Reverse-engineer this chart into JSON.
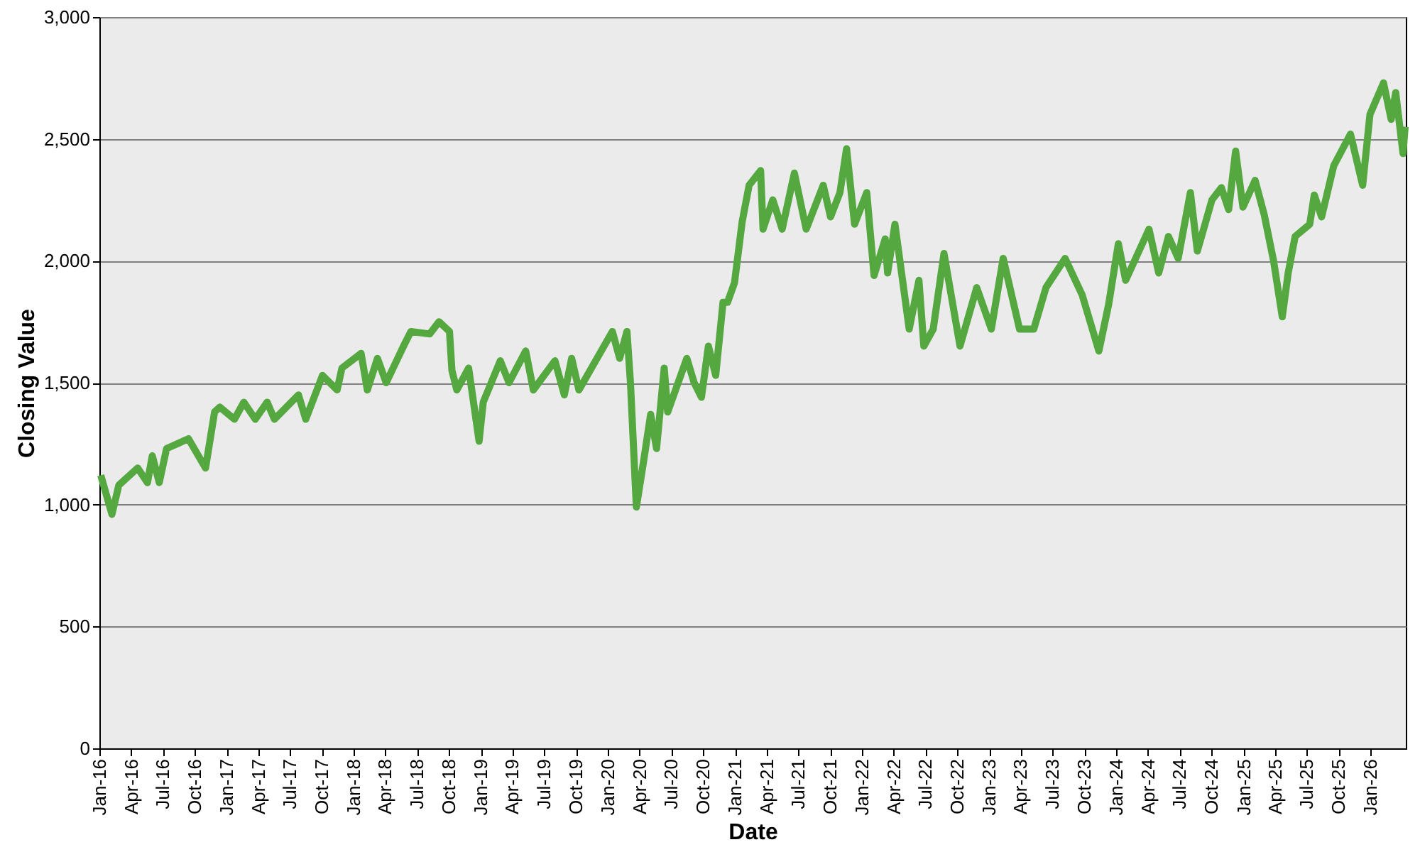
{
  "chart_data": {
    "type": "line",
    "xlabel": "Date",
    "ylabel": "Closing Value",
    "x": [
      "2016-01-05",
      "2016-02-06",
      "2016-02-26",
      "2016-04-20",
      "2016-05-18",
      "2016-06-01",
      "2016-06-21",
      "2016-07-12",
      "2016-09-13",
      "2016-11-01",
      "2016-11-27",
      "2016-12-12",
      "2017-01-23",
      "2017-02-19",
      "2017-03-24",
      "2017-04-27",
      "2017-05-18",
      "2017-07-26",
      "2017-08-16",
      "2017-10-03",
      "2017-11-14",
      "2017-11-28",
      "2018-01-22",
      "2018-02-09",
      "2018-03-10",
      "2018-04-04",
      "2018-05-24",
      "2018-06-14",
      "2018-08-07",
      "2018-09-03",
      "2018-10-03",
      "2018-10-10",
      "2018-10-24",
      "2018-11-27",
      "2018-12-27",
      "2019-01-08",
      "2019-02-26",
      "2019-03-23",
      "2019-05-10",
      "2019-06-01",
      "2019-08-02",
      "2019-08-29",
      "2019-09-19",
      "2019-10-10",
      "2020-01-14",
      "2020-02-04",
      "2020-02-25",
      "2020-03-06",
      "2020-03-23",
      "2020-04-13",
      "2020-05-03",
      "2020-05-20",
      "2020-06-11",
      "2020-06-21",
      "2020-08-15",
      "2020-09-05",
      "2020-09-26",
      "2020-10-16",
      "2020-11-06",
      "2020-11-27",
      "2020-12-10",
      "2020-12-30",
      "2021-01-21",
      "2021-02-10",
      "2021-03-15",
      "2021-03-22",
      "2021-04-19",
      "2021-05-16",
      "2021-06-20",
      "2021-07-24",
      "2021-09-11",
      "2021-10-02",
      "2021-10-29",
      "2021-11-17",
      "2021-12-10",
      "2022-01-14",
      "2022-02-04",
      "2022-03-08",
      "2022-03-15",
      "2022-04-05",
      "2022-05-16",
      "2022-06-13",
      "2022-06-27",
      "2022-07-24",
      "2022-08-24",
      "2022-10-09",
      "2022-11-26",
      "2023-01-07",
      "2023-02-10",
      "2023-03-29",
      "2023-05-09",
      "2023-06-13",
      "2023-08-07",
      "2023-09-25",
      "2023-11-12",
      "2023-12-10",
      "2024-01-07",
      "2024-01-28",
      "2024-04-04",
      "2024-05-02",
      "2024-05-30",
      "2024-06-27",
      "2024-08-01",
      "2024-08-21",
      "2024-10-02",
      "2024-10-29",
      "2024-11-19",
      "2024-12-09",
      "2024-12-30",
      "2025-02-03",
      "2025-03-01",
      "2025-03-28",
      "2025-04-22",
      "2025-05-09",
      "2025-05-29",
      "2025-07-10",
      "2025-07-23",
      "2025-08-13",
      "2025-09-17",
      "2025-11-04",
      "2025-12-09",
      "2025-12-30",
      "2026-02-07",
      "2026-03-01",
      "2026-03-14",
      "2026-04-04",
      "2026-04-10"
    ],
    "series": [
      {
        "color": "#55a83f",
        "values": [
          1120,
          960,
          1080,
          1150,
          1090,
          1200,
          1090,
          1230,
          1270,
          1150,
          1380,
          1400,
          1350,
          1420,
          1350,
          1420,
          1350,
          1450,
          1350,
          1530,
          1470,
          1560,
          1620,
          1470,
          1600,
          1500,
          1650,
          1710,
          1700,
          1750,
          1710,
          1550,
          1470,
          1560,
          1260,
          1420,
          1590,
          1500,
          1630,
          1470,
          1590,
          1450,
          1600,
          1470,
          1710,
          1600,
          1710,
          1500,
          990,
          1180,
          1370,
          1230,
          1560,
          1380,
          1600,
          1500,
          1440,
          1650,
          1530,
          1830,
          1830,
          1910,
          2160,
          2310,
          2370,
          2130,
          2250,
          2130,
          2360,
          2130,
          2310,
          2180,
          2280,
          2460,
          2150,
          2280,
          1940,
          2090,
          1950,
          2150,
          1720,
          1920,
          1650,
          1720,
          2030,
          1650,
          1890,
          1720,
          2010,
          1720,
          1720,
          1890,
          2010,
          1860,
          1630,
          1820,
          2070,
          1920,
          2130,
          1950,
          2100,
          2010,
          2280,
          2040,
          2250,
          2300,
          2210,
          2450,
          2220,
          2330,
          2190,
          2000,
          1770,
          1950,
          2100,
          2150,
          2270,
          2180,
          2390,
          2520,
          2310,
          2600,
          2730,
          2580,
          2690,
          2440,
          2550
        ]
      }
    ],
    "xlim": [
      "2016-01-01",
      "2026-04-12"
    ],
    "ylim": [
      0,
      3000
    ],
    "yticks": [
      0,
      500,
      {
        "value": 1000,
        "label": "1,000"
      },
      {
        "value": 1500,
        "label": "1,500"
      },
      {
        "value": 2000,
        "label": "2,000"
      },
      {
        "value": 2500,
        "label": "2,500"
      },
      {
        "value": 3000,
        "label": "3,000"
      }
    ],
    "xticks": [
      {
        "value": "2016-01-01",
        "label": "Jan-16"
      },
      {
        "value": "2016-04-01",
        "label": "Apr-16"
      },
      {
        "value": "2016-07-01",
        "label": "Jul-16"
      },
      {
        "value": "2016-10-01",
        "label": "Oct-16"
      },
      {
        "value": "2017-01-01",
        "label": "Jan-17"
      },
      {
        "value": "2017-04-01",
        "label": "Apr-17"
      },
      {
        "value": "2017-07-01",
        "label": "Jul-17"
      },
      {
        "value": "2017-10-01",
        "label": "Oct-17"
      },
      {
        "value": "2018-01-01",
        "label": "Jan-18"
      },
      {
        "value": "2018-04-01",
        "label": "Apr-18"
      },
      {
        "value": "2018-07-01",
        "label": "Jul-18"
      },
      {
        "value": "2018-10-01",
        "label": "Oct-18"
      },
      {
        "value": "2019-01-01",
        "label": "Jan-19"
      },
      {
        "value": "2019-04-01",
        "label": "Apr-19"
      },
      {
        "value": "2019-07-01",
        "label": "Jul-19"
      },
      {
        "value": "2019-10-01",
        "label": "Oct-19"
      },
      {
        "value": "2020-01-01",
        "label": "Jan-20"
      },
      {
        "value": "2020-04-01",
        "label": "Apr-20"
      },
      {
        "value": "2020-07-01",
        "label": "Jul-20"
      },
      {
        "value": "2020-10-01",
        "label": "Oct-20"
      },
      {
        "value": "2021-01-01",
        "label": "Jan-21"
      },
      {
        "value": "2021-04-01",
        "label": "Apr-21"
      },
      {
        "value": "2021-07-01",
        "label": "Jul-21"
      },
      {
        "value": "2021-10-01",
        "label": "Oct-21"
      },
      {
        "value": "2022-01-01",
        "label": "Jan-22"
      },
      {
        "value": "2022-04-01",
        "label": "Apr-22"
      },
      {
        "value": "2022-07-01",
        "label": "Jul-22"
      },
      {
        "value": "2022-10-01",
        "label": "Oct-22"
      },
      {
        "value": "2023-01-01",
        "label": "Jan-23"
      },
      {
        "value": "2023-04-01",
        "label": "Apr-23"
      },
      {
        "value": "2023-07-01",
        "label": "Jul-23"
      },
      {
        "value": "2023-10-01",
        "label": "Oct-23"
      },
      {
        "value": "2024-01-01",
        "label": "Jan-24"
      },
      {
        "value": "2024-04-01",
        "label": "Apr-24"
      },
      {
        "value": "2024-07-01",
        "label": "Jul-24"
      },
      {
        "value": "2024-10-01",
        "label": "Oct-24"
      },
      {
        "value": "2025-01-01",
        "label": "Jan-25"
      },
      {
        "value": "2025-04-01",
        "label": "Apr-25"
      },
      {
        "value": "2025-07-01",
        "label": "Jul-25"
      },
      {
        "value": "2025-10-01",
        "label": "Oct-25"
      },
      {
        "value": "2026-01-01",
        "label": "Jan-26"
      }
    ],
    "grid": "y",
    "legend": false,
    "marker": "none",
    "line_style": "solid"
  }
}
